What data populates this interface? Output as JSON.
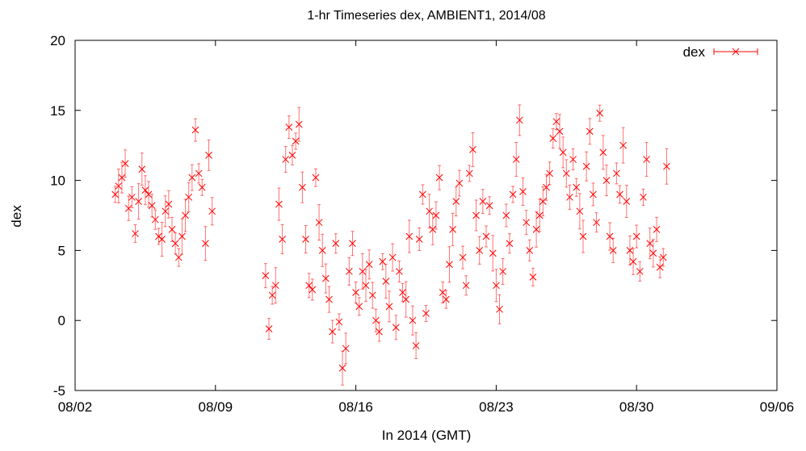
{
  "chart_data": {
    "type": "scatter",
    "title": "1-hr Timeseries dex, AMBIENT1, 2014/08",
    "xlabel": "In 2014 (GMT)",
    "ylabel": "dex",
    "ylim": [
      -5,
      20
    ],
    "yticks": [
      -5,
      0,
      5,
      10,
      15,
      20
    ],
    "xlim": [
      "2014-08-02",
      "2014-09-06"
    ],
    "xticks": [
      "08/02",
      "08/09",
      "08/16",
      "08/23",
      "08/30",
      "09/06"
    ],
    "grid": false,
    "legend_position": "top-right",
    "error_bars": true,
    "series": [
      {
        "name": "dex",
        "color": "#ff0000",
        "marker": "x",
        "points": [
          [
            "08/04 00:00",
            9.0
          ],
          [
            "08/04 04:00",
            9.6
          ],
          [
            "08/04 08:00",
            10.2
          ],
          [
            "08/04 12:00",
            11.2
          ],
          [
            "08/04 16:00",
            8.0
          ],
          [
            "08/04 20:00",
            8.8
          ],
          [
            "08/05 00:00",
            6.2
          ],
          [
            "08/05 04:00",
            8.5
          ],
          [
            "08/05 08:00",
            10.8
          ],
          [
            "08/05 12:00",
            9.3
          ],
          [
            "08/05 16:00",
            9.0
          ],
          [
            "08/05 20:00",
            8.2
          ],
          [
            "08/06 00:00",
            7.2
          ],
          [
            "08/06 04:00",
            6.0
          ],
          [
            "08/06 08:00",
            5.8
          ],
          [
            "08/06 12:00",
            7.8
          ],
          [
            "08/06 16:00",
            8.3
          ],
          [
            "08/06 20:00",
            6.5
          ],
          [
            "08/07 00:00",
            5.5
          ],
          [
            "08/07 04:00",
            4.5
          ],
          [
            "08/07 08:00",
            6.0
          ],
          [
            "08/07 12:00",
            7.5
          ],
          [
            "08/07 16:00",
            8.8
          ],
          [
            "08/07 20:00",
            10.2
          ],
          [
            "08/08 00:00",
            13.6
          ],
          [
            "08/08 04:00",
            10.5
          ],
          [
            "08/08 08:00",
            9.5
          ],
          [
            "08/08 12:00",
            5.5
          ],
          [
            "08/08 16:00",
            11.8
          ],
          [
            "08/08 20:00",
            7.8
          ],
          [
            "08/11 12:00",
            3.2
          ],
          [
            "08/11 16:00",
            -0.6
          ],
          [
            "08/11 20:00",
            1.8
          ],
          [
            "08/12 00:00",
            2.5
          ],
          [
            "08/12 04:00",
            8.3
          ],
          [
            "08/12 08:00",
            5.8
          ],
          [
            "08/12 12:00",
            11.5
          ],
          [
            "08/12 16:00",
            13.8
          ],
          [
            "08/12 20:00",
            11.8
          ],
          [
            "08/13 00:00",
            12.8
          ],
          [
            "08/13 04:00",
            14.0
          ],
          [
            "08/13 08:00",
            9.5
          ],
          [
            "08/13 12:00",
            5.8
          ],
          [
            "08/13 16:00",
            2.5
          ],
          [
            "08/13 20:00",
            2.2
          ],
          [
            "08/14 00:00",
            10.2
          ],
          [
            "08/14 04:00",
            7.0
          ],
          [
            "08/14 08:00",
            5.0
          ],
          [
            "08/14 12:00",
            3.0
          ],
          [
            "08/14 16:00",
            1.5
          ],
          [
            "08/14 20:00",
            -0.8
          ],
          [
            "08/15 00:00",
            5.5
          ],
          [
            "08/15 04:00",
            -0.1
          ],
          [
            "08/15 08:00",
            -3.4
          ],
          [
            "08/15 12:00",
            -2.0
          ],
          [
            "08/15 16:00",
            3.5
          ],
          [
            "08/15 20:00",
            5.5
          ],
          [
            "08/16 00:00",
            2.0
          ],
          [
            "08/16 04:00",
            1.0
          ],
          [
            "08/16 08:00",
            3.5
          ],
          [
            "08/16 12:00",
            2.5
          ],
          [
            "08/16 16:00",
            4.0
          ],
          [
            "08/16 20:00",
            1.8
          ],
          [
            "08/17 00:00",
            0.0
          ],
          [
            "08/17 04:00",
            -0.8
          ],
          [
            "08/17 08:00",
            4.2
          ],
          [
            "08/17 12:00",
            2.8
          ],
          [
            "08/17 16:00",
            1.0
          ],
          [
            "08/17 20:00",
            4.5
          ],
          [
            "08/18 00:00",
            -0.5
          ],
          [
            "08/18 04:00",
            3.5
          ],
          [
            "08/18 08:00",
            2.0
          ],
          [
            "08/18 12:00",
            1.5
          ],
          [
            "08/18 16:00",
            6.0
          ],
          [
            "08/18 20:00",
            0.0
          ],
          [
            "08/19 00:00",
            -1.8
          ],
          [
            "08/19 04:00",
            5.8
          ],
          [
            "08/19 08:00",
            9.0
          ],
          [
            "08/19 12:00",
            0.5
          ],
          [
            "08/19 16:00",
            7.8
          ],
          [
            "08/19 20:00",
            6.5
          ],
          [
            "08/20 00:00",
            7.5
          ],
          [
            "08/20 04:00",
            10.2
          ],
          [
            "08/20 08:00",
            2.0
          ],
          [
            "08/20 12:00",
            1.5
          ],
          [
            "08/20 16:00",
            4.0
          ],
          [
            "08/20 20:00",
            6.5
          ],
          [
            "08/21 00:00",
            8.5
          ],
          [
            "08/21 04:00",
            9.8
          ],
          [
            "08/21 08:00",
            4.5
          ],
          [
            "08/21 12:00",
            2.5
          ],
          [
            "08/21 16:00",
            10.5
          ],
          [
            "08/21 20:00",
            12.2
          ],
          [
            "08/22 00:00",
            7.5
          ],
          [
            "08/22 04:00",
            5.0
          ],
          [
            "08/22 08:00",
            8.5
          ],
          [
            "08/22 12:00",
            6.0
          ],
          [
            "08/22 16:00",
            8.2
          ],
          [
            "08/22 20:00",
            4.8
          ],
          [
            "08/23 00:00",
            2.5
          ],
          [
            "08/23 04:00",
            0.8
          ],
          [
            "08/23 08:00",
            3.5
          ],
          [
            "08/23 12:00",
            7.5
          ],
          [
            "08/23 16:00",
            5.5
          ],
          [
            "08/23 20:00",
            9.0
          ],
          [
            "08/24 00:00",
            11.5
          ],
          [
            "08/24 04:00",
            14.3
          ],
          [
            "08/24 08:00",
            9.2
          ],
          [
            "08/24 12:00",
            7.0
          ],
          [
            "08/24 16:00",
            5.0
          ],
          [
            "08/24 20:00",
            3.1
          ],
          [
            "08/25 00:00",
            6.5
          ],
          [
            "08/25 04:00",
            7.5
          ],
          [
            "08/25 08:00",
            8.5
          ],
          [
            "08/25 12:00",
            9.5
          ],
          [
            "08/25 16:00",
            10.5
          ],
          [
            "08/25 20:00",
            13.0
          ],
          [
            "08/26 00:00",
            14.2
          ],
          [
            "08/26 04:00",
            13.5
          ],
          [
            "08/26 08:00",
            12.0
          ],
          [
            "08/26 12:00",
            10.5
          ],
          [
            "08/26 16:00",
            8.8
          ],
          [
            "08/26 20:00",
            11.5
          ],
          [
            "08/27 00:00",
            9.5
          ],
          [
            "08/27 04:00",
            7.8
          ],
          [
            "08/27 08:00",
            6.0
          ],
          [
            "08/27 12:00",
            11.0
          ],
          [
            "08/27 16:00",
            13.5
          ],
          [
            "08/27 20:00",
            9.0
          ],
          [
            "08/28 00:00",
            7.0
          ],
          [
            "08/28 04:00",
            14.8
          ],
          [
            "08/28 08:00",
            12.0
          ],
          [
            "08/28 12:00",
            10.0
          ],
          [
            "08/28 16:00",
            6.0
          ],
          [
            "08/28 20:00",
            5.0
          ],
          [
            "08/29 00:00",
            10.5
          ],
          [
            "08/29 04:00",
            9.0
          ],
          [
            "08/29 08:00",
            12.5
          ],
          [
            "08/29 12:00",
            8.5
          ],
          [
            "08/29 16:00",
            5.0
          ],
          [
            "08/29 20:00",
            4.2
          ],
          [
            "08/30 00:00",
            6.0
          ],
          [
            "08/30 04:00",
            3.5
          ],
          [
            "08/30 08:00",
            8.8
          ],
          [
            "08/30 12:00",
            11.5
          ],
          [
            "08/30 16:00",
            5.5
          ],
          [
            "08/30 20:00",
            4.8
          ],
          [
            "08/31 00:00",
            6.5
          ],
          [
            "08/31 04:00",
            3.8
          ],
          [
            "08/31 08:00",
            4.5
          ],
          [
            "08/31 12:00",
            11.0
          ]
        ]
      }
    ]
  }
}
